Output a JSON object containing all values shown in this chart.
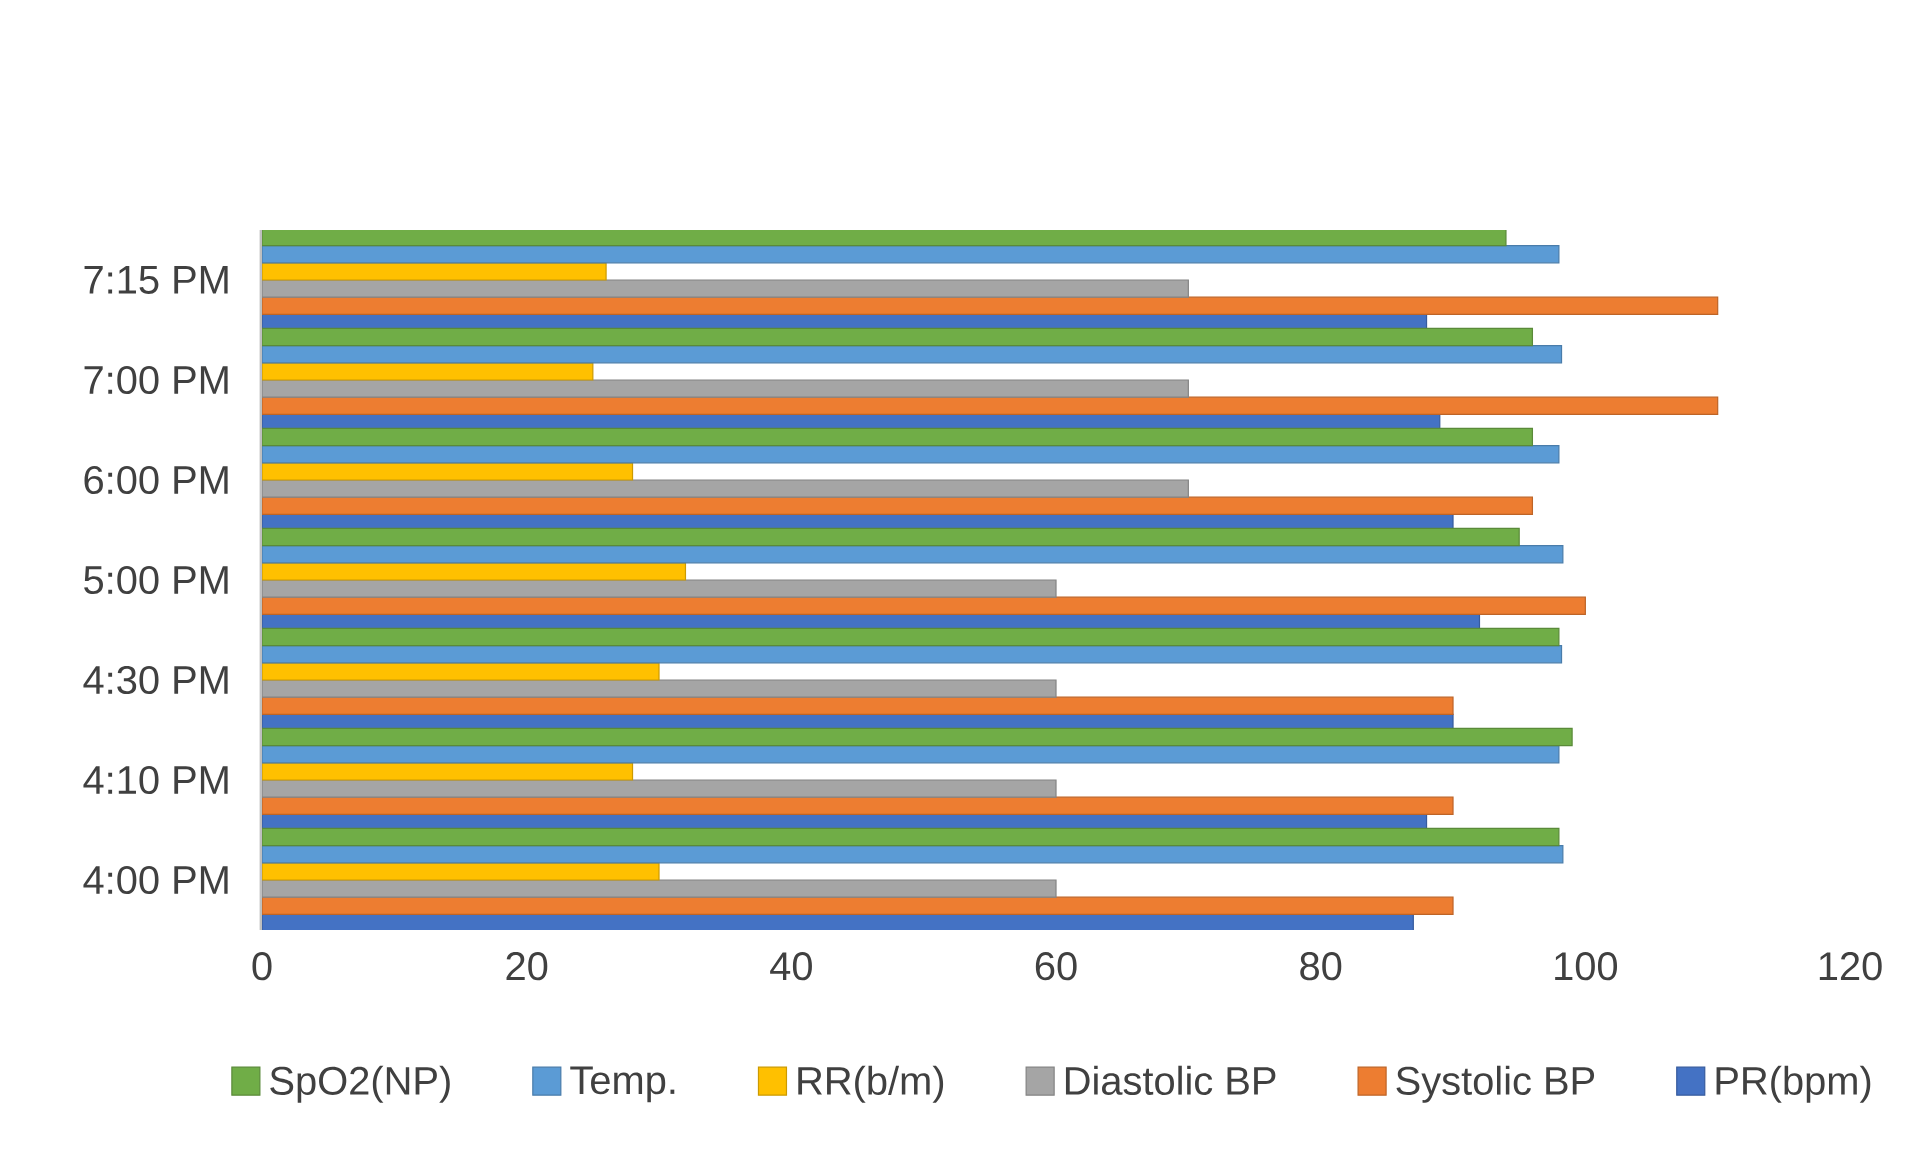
{
  "chart_data": {
    "type": "bar",
    "orientation": "horizontal",
    "categories": [
      "7:15 PM",
      "7:00 PM",
      "6:00 PM",
      "5:00 PM",
      "4:30 PM",
      "4:10 PM",
      "4:00 PM"
    ],
    "series": [
      {
        "name": "PR(bpm)",
        "color": "#4472c4",
        "values": [
          88,
          89,
          90,
          92,
          90,
          88,
          87
        ]
      },
      {
        "name": "Systolic BP",
        "color": "#ed7d31",
        "values": [
          110,
          110,
          96,
          100,
          90,
          90,
          90
        ]
      },
      {
        "name": "Diastolic BP",
        "color": "#a5a5a5",
        "values": [
          70,
          70,
          70,
          60,
          60,
          60,
          60
        ]
      },
      {
        "name": "RR(b/m)",
        "color": "#ffc000",
        "values": [
          26,
          25,
          28,
          32,
          30,
          28,
          30
        ]
      },
      {
        "name": "Temp.",
        "color": "#5b9bd5",
        "values": [
          98,
          98.2,
          98,
          98.3,
          98.2,
          98,
          98.3
        ]
      },
      {
        "name": "SpO2(NP)",
        "color": "#70ad47",
        "values": [
          94,
          96,
          96,
          95,
          98,
          99,
          98
        ]
      }
    ],
    "xlim": [
      0,
      120
    ],
    "xticks": [
      0,
      20,
      40,
      60,
      80,
      100,
      120
    ],
    "legend": "bottom"
  }
}
